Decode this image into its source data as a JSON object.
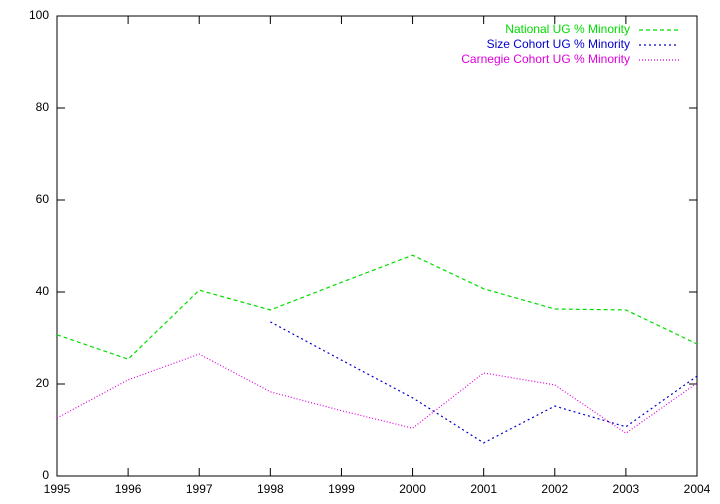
{
  "chart_data": {
    "type": "line",
    "x": [
      1995,
      1996,
      1997,
      1998,
      1999,
      2000,
      2001,
      2002,
      2003,
      2004
    ],
    "series": [
      {
        "name": "National UG % Minority",
        "color": "#00dd00",
        "dash": "4,3",
        "values": [
          30.7,
          25.4,
          40.4,
          36.1,
          42.1,
          48.0,
          40.7,
          36.3,
          36.1,
          28.7
        ]
      },
      {
        "name": "Size Cohort UG % Minority",
        "color": "#0000cc",
        "dash": "2,3",
        "values": [
          null,
          null,
          null,
          33.5,
          25.2,
          17.0,
          7.2,
          15.2,
          10.7,
          21.7
        ]
      },
      {
        "name": "Carnegie Cohort UG % Minority",
        "color": "#dd00dd",
        "dash": "1,2",
        "values": [
          12.6,
          20.9,
          26.5,
          18.3,
          14.2,
          10.4,
          22.4,
          19.8,
          9.3,
          20.2
        ]
      }
    ],
    "xlim": [
      1995,
      2004
    ],
    "xticks": [
      1995,
      1996,
      1997,
      1998,
      1999,
      2000,
      2001,
      2002,
      2003,
      2004
    ],
    "ylim": [
      0,
      100
    ],
    "yticks": [
      0,
      20,
      40,
      60,
      80,
      100
    ],
    "legend": "top-right"
  }
}
